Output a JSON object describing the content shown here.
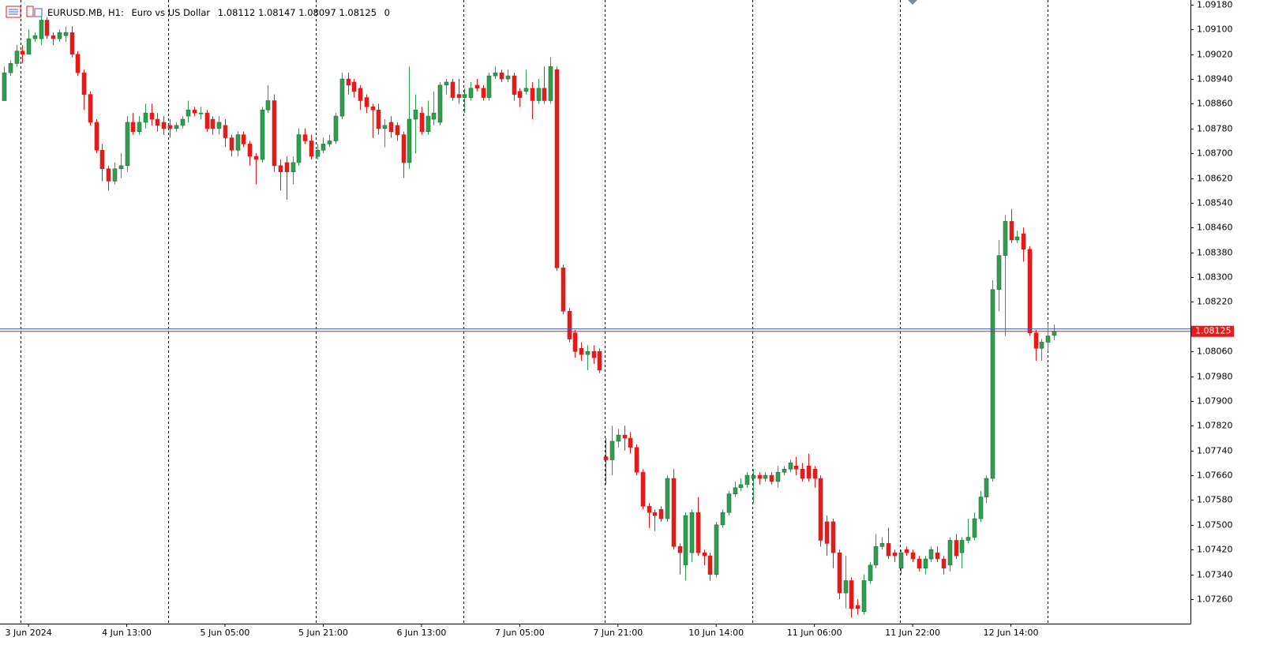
{
  "chart_data": {
    "type": "candlestick",
    "symbol": "EURUSD.MB, H1:",
    "description": "Euro vs US Dollar",
    "volume": 0,
    "up_color": "#2e9e4f",
    "down_color": "#e21b1b",
    "bid": 1.08125,
    "bid_color": "#e21b1b",
    "ask": 1.08133,
    "ask_color": "#3b5bdb",
    "ylim": [
      1.07181,
      1.09195
    ],
    "yticks": [
      {
        "value": 1.0918,
        "label": "1.09180"
      },
      {
        "value": 1.091,
        "label": "1.09100"
      },
      {
        "value": 1.0902,
        "label": "1.09020"
      },
      {
        "value": 1.0894,
        "label": "1.08940"
      },
      {
        "value": 1.0886,
        "label": "1.08860"
      },
      {
        "value": 1.0878,
        "label": "1.08780"
      },
      {
        "value": 1.087,
        "label": "1.08700"
      },
      {
        "value": 1.0862,
        "label": "1.08620"
      },
      {
        "value": 1.0854,
        "label": "1.08540"
      },
      {
        "value": 1.0846,
        "label": "1.08460"
      },
      {
        "value": 1.0838,
        "label": "1.08380"
      },
      {
        "value": 1.083,
        "label": "1.08300"
      },
      {
        "value": 1.0822,
        "label": "1.08220"
      },
      {
        "value": 1.0806,
        "label": "1.08060"
      },
      {
        "value": 1.0798,
        "label": "1.07980"
      },
      {
        "value": 1.079,
        "label": "1.07900"
      },
      {
        "value": 1.0782,
        "label": "1.07820"
      },
      {
        "value": 1.0774,
        "label": "1.07740"
      },
      {
        "value": 1.0766,
        "label": "1.07660"
      },
      {
        "value": 1.0758,
        "label": "1.07580"
      },
      {
        "value": 1.075,
        "label": "1.07500"
      },
      {
        "value": 1.0742,
        "label": "1.07420"
      },
      {
        "value": 1.0734,
        "label": "1.07340"
      },
      {
        "value": 1.0726,
        "label": "1.07260"
      }
    ],
    "categories": [
      null,
      null,
      null,
      null,
      "3 Jun 2024",
      null,
      null,
      null,
      null,
      null,
      null,
      null,
      null,
      null,
      null,
      null,
      null,
      null,
      null,
      null,
      "4 Jun 13:00",
      null,
      null,
      null,
      null,
      null,
      null,
      null,
      null,
      null,
      null,
      null,
      null,
      null,
      null,
      null,
      "5 Jun 05:00",
      null,
      null,
      null,
      null,
      null,
      null,
      null,
      null,
      null,
      null,
      null,
      null,
      null,
      null,
      null,
      "5 Jun 21:00",
      null,
      null,
      null,
      null,
      null,
      null,
      null,
      null,
      null,
      null,
      null,
      null,
      null,
      null,
      null,
      "6 Jun 13:00",
      null,
      null,
      null,
      null,
      null,
      null,
      null,
      null,
      null,
      null,
      null,
      null,
      null,
      null,
      null,
      "7 Jun 05:00",
      null,
      null,
      null,
      null,
      null,
      null,
      null,
      null,
      null,
      null,
      null,
      null,
      null,
      null,
      null,
      "7 Jun 21:00",
      null,
      null,
      null,
      null,
      null,
      null,
      null,
      null,
      null,
      null,
      null,
      null,
      null,
      null,
      null,
      "10 Jun 14:00",
      null,
      null,
      null,
      null,
      null,
      null,
      null,
      null,
      null,
      null,
      null,
      null,
      null,
      null,
      null,
      "11 Jun 06:00",
      null,
      null,
      null,
      null,
      null,
      null,
      null,
      null,
      null,
      null,
      null,
      null,
      null,
      null,
      null,
      "11 Jun 22:00",
      null,
      null,
      null,
      null,
      null,
      null,
      null,
      null,
      null,
      null,
      null,
      null,
      null,
      null,
      null,
      "12 Jun 14:00",
      null,
      null,
      null,
      null,
      null,
      null,
      null
    ],
    "open": [
      1.0887,
      1.0896,
      1.0899,
      1.0903,
      1.0902,
      1.0907,
      1.0907,
      1.0913,
      1.0908,
      1.0907,
      1.0908,
      1.0909,
      1.0902,
      1.0896,
      1.0889,
      1.088,
      1.0871,
      1.0865,
      1.0861,
      1.0865,
      1.0866,
      1.088,
      1.0877,
      1.088,
      1.0883,
      1.0881,
      1.088,
      1.0879,
      1.0878,
      1.0879,
      1.0882,
      1.0884,
      1.0883,
      1.0883,
      1.0881,
      1.0878,
      1.0879,
      1.0875,
      1.0871,
      1.0876,
      1.0873,
      1.0869,
      1.0868,
      1.0884,
      1.0887,
      1.0866,
      1.0867,
      1.0864,
      1.0867,
      1.0876,
      1.0874,
      1.0869,
      1.0871,
      1.0873,
      1.0874,
      1.0882,
      1.0894,
      1.0893,
      1.0891,
      1.0888,
      1.0885,
      1.0884,
      1.0878,
      1.088,
      1.0879,
      1.0876,
      1.0867,
      1.0881,
      1.0883,
      1.0877,
      1.0881,
      1.088,
      1.0892,
      1.0893,
      1.0889,
      1.0888,
      1.0888,
      1.0892,
      1.0891,
      1.0888,
      1.0895,
      1.0896,
      1.0894,
      1.0895,
      1.089,
      1.089,
      1.0891,
      1.0887,
      1.0891,
      1.0887,
      1.0897,
      1.0833,
      1.0819,
      1.0812,
      1.0807,
      1.0805,
      1.0806,
      1.0806,
      1.0772,
      1.0771,
      1.0777,
      1.0779,
      1.0778,
      1.0775,
      1.0767,
      1.0756,
      1.0754,
      1.0755,
      1.0752,
      1.0765,
      1.0743,
      1.0737,
      1.0741,
      1.0754,
      1.0741,
      1.074,
      1.0734,
      1.075,
      1.0754,
      1.076,
      1.0762,
      1.0763,
      1.0765,
      1.0766,
      1.0765,
      1.0766,
      1.0764,
      1.0767,
      1.0768,
      1.0769,
      1.0768,
      1.0769,
      1.0768,
      1.0765,
      1.0751,
      1.0751,
      1.0741,
      1.0728,
      1.0732,
      1.0724,
      1.0722,
      1.0732,
      1.0737,
      1.0743,
      1.0744,
      1.0741,
      1.0736,
      1.0742,
      1.0741,
      1.0739,
      1.0736,
      1.0739,
      1.0741,
      1.0739,
      1.0737,
      1.0745,
      1.0741,
      1.0745,
      1.0746,
      1.0752,
      1.0759,
      1.0765,
      1.0826,
      1.0837,
      1.0848,
      1.0842,
      1.0844,
      1.0839,
      1.0812,
      1.0807,
      1.0809,
      1.08112
    ],
    "high": [
      1.0898,
      1.09,
      1.0905,
      1.0905,
      1.091,
      1.0909,
      1.0915,
      1.0914,
      1.0909,
      1.091,
      1.0911,
      1.0911,
      1.0903,
      1.0897,
      1.089,
      1.0881,
      1.0873,
      1.0866,
      1.0867,
      1.087,
      1.0882,
      1.0883,
      1.0882,
      1.0886,
      1.0886,
      1.0883,
      1.0882,
      1.0881,
      1.088,
      1.0882,
      1.0887,
      1.0885,
      1.0885,
      1.0884,
      1.0882,
      1.0882,
      1.0881,
      1.0876,
      1.0877,
      1.0877,
      1.0874,
      1.087,
      1.0885,
      1.0892,
      1.0889,
      1.0868,
      1.0869,
      1.0869,
      1.0878,
      1.0878,
      1.0876,
      1.0873,
      1.0875,
      1.0876,
      1.0883,
      1.0896,
      1.0896,
      1.0894,
      1.0892,
      1.0889,
      1.0886,
      1.0886,
      1.0881,
      1.0882,
      1.088,
      1.0877,
      1.0898,
      1.0889,
      1.0885,
      1.0887,
      1.089,
      1.0893,
      1.0894,
      1.0894,
      1.0894,
      1.0891,
      1.0893,
      1.0894,
      1.0892,
      1.0896,
      1.0898,
      1.0897,
      1.0897,
      1.0896,
      1.0891,
      1.0897,
      1.0893,
      1.0894,
      1.0898,
      1.0901,
      1.0898,
      1.0834,
      1.082,
      1.0813,
      1.0809,
      1.0808,
      1.0808,
      1.0807,
      1.0778,
      1.0782,
      1.0781,
      1.0782,
      1.078,
      1.0776,
      1.0768,
      1.0757,
      1.0755,
      1.0756,
      1.0766,
      1.0768,
      1.0744,
      1.0754,
      1.0755,
      1.0759,
      1.0742,
      1.0741,
      1.0751,
      1.0755,
      1.0761,
      1.0764,
      1.0765,
      1.0767,
      1.0768,
      1.0767,
      1.0767,
      1.0767,
      1.0769,
      1.0769,
      1.0771,
      1.0772,
      1.077,
      1.0773,
      1.0769,
      1.0766,
      1.0753,
      1.0752,
      1.0742,
      1.074,
      1.0733,
      1.0726,
      1.0734,
      1.0738,
      1.0747,
      1.0746,
      1.0749,
      1.0742,
      1.0742,
      1.0743,
      1.0742,
      1.074,
      1.074,
      1.0743,
      1.0743,
      1.074,
      1.0746,
      1.0747,
      1.0746,
      1.0752,
      1.0754,
      1.0761,
      1.0766,
      1.0829,
      1.0842,
      1.085,
      1.0852,
      1.0845,
      1.0846,
      1.084,
      1.0813,
      1.081,
      1.0815,
      1.08147
    ],
    "low": [
      1.0887,
      1.0895,
      1.0898,
      1.0899,
      1.0902,
      1.0906,
      1.0905,
      1.0907,
      1.0905,
      1.0906,
      1.0906,
      1.0901,
      1.0895,
      1.0884,
      1.0879,
      1.087,
      1.0861,
      1.0858,
      1.086,
      1.0862,
      1.0864,
      1.0876,
      1.0876,
      1.0878,
      1.0879,
      1.0877,
      1.0876,
      1.0875,
      1.0877,
      1.0878,
      1.088,
      1.0882,
      1.0881,
      1.0877,
      1.0876,
      1.0876,
      1.0872,
      1.0869,
      1.0869,
      1.0872,
      1.0866,
      1.086,
      1.0867,
      1.0883,
      1.0864,
      1.0858,
      1.0855,
      1.086,
      1.0866,
      1.0873,
      1.0868,
      1.0868,
      1.087,
      1.0872,
      1.0873,
      1.0881,
      1.0889,
      1.0888,
      1.0884,
      1.0883,
      1.0875,
      1.0876,
      1.0872,
      1.0875,
      1.0874,
      1.0862,
      1.0865,
      1.087,
      1.0876,
      1.0876,
      1.0879,
      1.0879,
      1.0889,
      1.0887,
      1.0886,
      1.0883,
      1.0887,
      1.089,
      1.0887,
      1.0887,
      1.0894,
      1.0893,
      1.0893,
      1.0887,
      1.0885,
      1.0889,
      1.0881,
      1.0886,
      1.0886,
      1.0886,
      1.0832,
      1.0818,
      1.0809,
      1.0804,
      1.0803,
      1.08,
      1.0802,
      1.0799,
      1.0763,
      1.0766,
      1.0775,
      1.0774,
      1.0773,
      1.0766,
      1.0755,
      1.0749,
      1.0748,
      1.0751,
      1.0751,
      1.0742,
      1.0734,
      1.0732,
      1.0738,
      1.074,
      1.0737,
      1.0732,
      1.0733,
      1.0749,
      1.0753,
      1.0759,
      1.0761,
      1.0762,
      1.0757,
      1.0763,
      1.0764,
      1.0763,
      1.0762,
      1.0766,
      1.0767,
      1.0766,
      1.0764,
      1.0764,
      1.0762,
      1.0743,
      1.074,
      1.0736,
      1.0726,
      1.0723,
      1.072,
      1.0721,
      1.0721,
      1.0731,
      1.0736,
      1.0742,
      1.0739,
      1.0738,
      1.0734,
      1.074,
      1.0738,
      1.0735,
      1.0734,
      1.0738,
      1.0738,
      1.0734,
      1.0735,
      1.0739,
      1.0736,
      1.0744,
      1.0745,
      1.0751,
      1.0757,
      1.0764,
      1.0819,
      1.0811,
      1.0841,
      1.0841,
      1.0835,
      1.0811,
      1.0803,
      1.0803,
      1.0806,
      1.08097
    ],
    "close": [
      1.0896,
      1.0899,
      1.0903,
      1.0902,
      1.0907,
      1.0908,
      1.0913,
      1.0908,
      1.0907,
      1.0909,
      1.0909,
      1.0902,
      1.0896,
      1.0889,
      1.088,
      1.0871,
      1.0865,
      1.0861,
      1.0865,
      1.0866,
      1.088,
      1.0877,
      1.088,
      1.0883,
      1.0881,
      1.0879,
      1.0878,
      1.0878,
      1.0879,
      1.0881,
      1.0884,
      1.0883,
      1.0883,
      1.0878,
      1.0878,
      1.088,
      1.0875,
      1.0871,
      1.0876,
      1.0873,
      1.0869,
      1.0868,
      1.0884,
      1.0887,
      1.0866,
      1.0864,
      1.0864,
      1.0867,
      1.0876,
      1.0874,
      1.0869,
      1.0871,
      1.0873,
      1.0874,
      1.0882,
      1.0894,
      1.0892,
      1.089,
      1.0887,
      1.0885,
      1.0884,
      1.0878,
      1.0879,
      1.0877,
      1.0876,
      1.0867,
      1.0881,
      1.0884,
      1.0877,
      1.0882,
      1.0883,
      1.0892,
      1.0893,
      1.0888,
      1.0888,
      1.0889,
      1.0891,
      1.0891,
      1.0888,
      1.0895,
      1.0896,
      1.0894,
      1.0895,
      1.0889,
      1.0888,
      1.0891,
      1.0887,
      1.0891,
      1.0887,
      1.0898,
      1.0833,
      1.0819,
      1.081,
      1.0806,
      1.0805,
      1.0806,
      1.0804,
      1.08,
      1.0771,
      1.0777,
      1.0779,
      1.0778,
      1.0775,
      1.0767,
      1.0756,
      1.0754,
      1.0753,
      1.0752,
      1.0765,
      1.0743,
      1.0741,
      1.0753,
      1.0754,
      1.0741,
      1.074,
      1.0734,
      1.075,
      1.0754,
      1.076,
      1.0762,
      1.0763,
      1.0766,
      1.0766,
      1.0765,
      1.0766,
      1.0764,
      1.0767,
      1.0768,
      1.077,
      1.0768,
      1.0765,
      1.0765,
      1.0765,
      1.0745,
      1.0744,
      1.0741,
      1.0728,
      1.0732,
      1.0723,
      1.0723,
      1.0732,
      1.0737,
      1.0743,
      1.0744,
      1.074,
      1.074,
      1.0741,
      1.0741,
      1.0739,
      1.0736,
      1.0739,
      1.0742,
      1.0739,
      1.0736,
      1.0745,
      1.074,
      1.0745,
      1.0746,
      1.0752,
      1.0759,
      1.0765,
      1.0826,
      1.0837,
      1.0848,
      1.0842,
      1.0843,
      1.0839,
      1.0812,
      1.0807,
      1.0809,
      1.0811,
      1.08125
    ]
  }
}
